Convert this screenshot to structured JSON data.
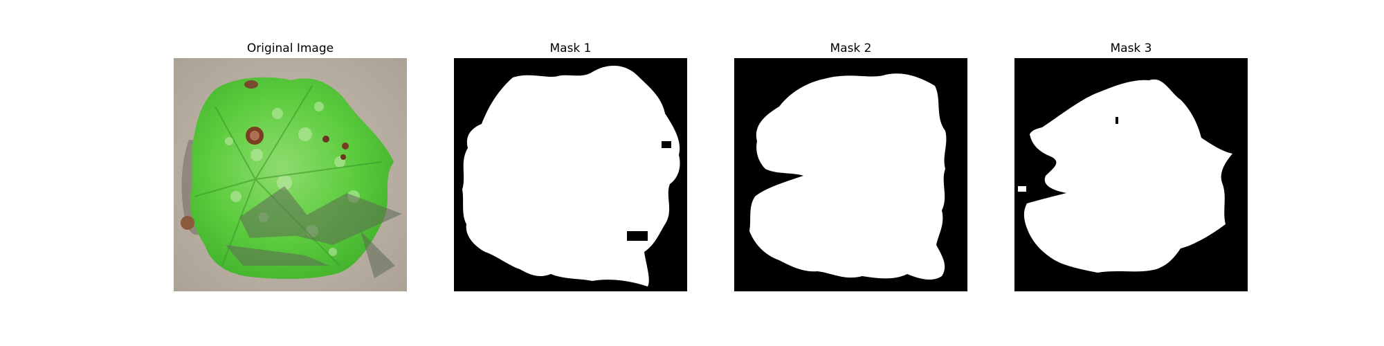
{
  "figure": {
    "panels": [
      {
        "title": "Original Image",
        "content": "leaf photograph"
      },
      {
        "title": "Mask 1",
        "content": "binary mask"
      },
      {
        "title": "Mask 2",
        "content": "binary mask"
      },
      {
        "title": "Mask 3",
        "content": "binary mask"
      }
    ]
  },
  "colors": {
    "mask_background": "#000000",
    "mask_foreground": "#ffffff",
    "leaf_green": "#52c83c",
    "sand": "#bdb3a6"
  }
}
